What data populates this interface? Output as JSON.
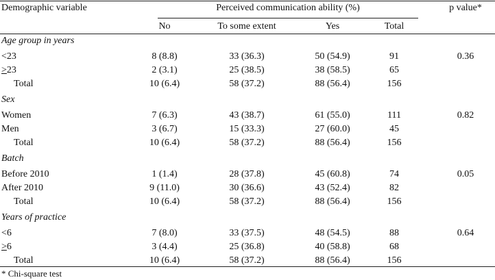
{
  "header": {
    "demographic_variable": "Demographic variable",
    "perceived": "Perceived communication ability (%)",
    "p_value": "p value*",
    "cols": [
      "No",
      "To some extent",
      "Yes",
      "Total"
    ]
  },
  "groups": [
    {
      "title": "Age group in years",
      "rows": [
        {
          "label": "<23",
          "underline": "",
          "no": "8 (8.8)",
          "some": "33 (36.3)",
          "yes": "50 (54.9)",
          "total": "91",
          "p": "0.36"
        },
        {
          "label": "23",
          "underline": ">",
          "no": "2 (3.1)",
          "some": "25 (38.5)",
          "yes": "38 (58.5)",
          "total": "65",
          "p": ""
        },
        {
          "label": "Total",
          "underline": "",
          "no": "10 (6.4)",
          "some": "58 (37.2)",
          "yes": "88 (56.4)",
          "total": "156",
          "p": ""
        }
      ]
    },
    {
      "title": "Sex",
      "rows": [
        {
          "label": "Women",
          "underline": "",
          "no": "7 (6.3)",
          "some": "43 (38.7)",
          "yes": "61 (55.0)",
          "total": "111",
          "p": "0.82"
        },
        {
          "label": "Men",
          "underline": "",
          "no": "3 (6.7)",
          "some": "15 (33.3)",
          "yes": "27 (60.0)",
          "total": "45",
          "p": ""
        },
        {
          "label": "Total",
          "underline": "",
          "no": "10 (6.4)",
          "some": "58 (37.2)",
          "yes": "88 (56.4)",
          "total": "156",
          "p": ""
        }
      ]
    },
    {
      "title": "Batch",
      "rows": [
        {
          "label": "Before 2010",
          "underline": "",
          "no": "1 (1.4)",
          "some": "28 (37.8)",
          "yes": "45 (60.8)",
          "total": "74",
          "p": "0.05"
        },
        {
          "label": "After 2010",
          "underline": "",
          "no": "9 (11.0)",
          "some": "30 (36.6)",
          "yes": "43 (52.4)",
          "total": "82",
          "p": ""
        },
        {
          "label": "Total",
          "underline": "",
          "no": "10 (6.4)",
          "some": "58 (37.2)",
          "yes": "88 (56.4)",
          "total": "156",
          "p": ""
        }
      ]
    },
    {
      "title": "Years of practice",
      "rows": [
        {
          "label": "<6",
          "underline": "",
          "no": "7 (8.0)",
          "some": "33 (37.5)",
          "yes": "48 (54.5)",
          "total": "88",
          "p": "0.64"
        },
        {
          "label": "6",
          "underline": ">",
          "no": "3 (4.4)",
          "some": "25 (36.8)",
          "yes": "40 (58.8)",
          "total": "68",
          "p": ""
        },
        {
          "label": "Total",
          "underline": "",
          "no": "10 (6.4)",
          "some": "58 (37.2)",
          "yes": "88 (56.4)",
          "total": "156",
          "p": ""
        }
      ]
    }
  ],
  "footnote": "* Chi-square test"
}
